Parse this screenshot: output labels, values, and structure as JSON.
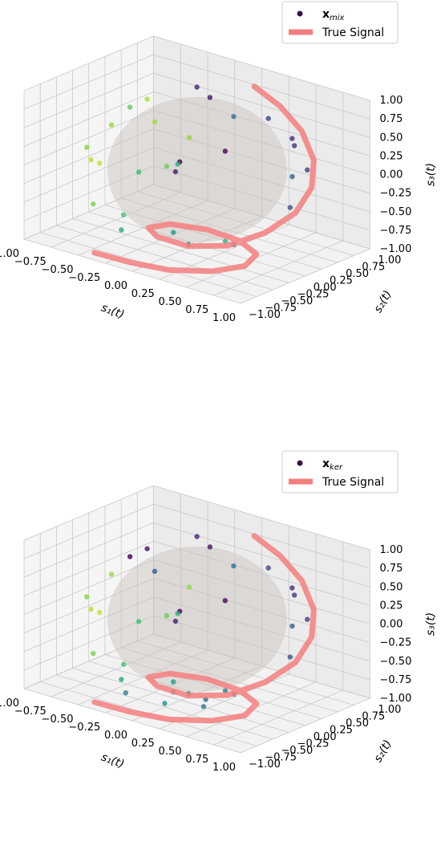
{
  "chart_data": [
    {
      "type": "scatter",
      "projection": "3d",
      "xlabel": "s₁(t)",
      "ylabel": "s₂(t)",
      "zlabel": "s₃(t)",
      "xlim": [
        -1,
        1
      ],
      "ylim": [
        -1,
        1
      ],
      "zlim": [
        -1,
        1
      ],
      "ticks": [
        "−1.00",
        "−0.75",
        "−0.50",
        "−0.25",
        "0.00",
        "0.25",
        "0.50",
        "0.75",
        "1.00"
      ],
      "grid": true,
      "legend_position": "top-right",
      "legend": [
        {
          "label_main": "x",
          "label_sub": "mix",
          "marker": "dot"
        },
        {
          "label": "True Signal",
          "marker": "line",
          "color": "#f47f7f"
        }
      ],
      "sphere": {
        "radius": 1,
        "color": "#c8c2bb"
      },
      "true_signal": {
        "name": "True Signal",
        "color": "#f47f7f",
        "description_param": "spiral on unit sphere from top-right down to bottom",
        "points": [
          [
            -0.35,
            -1.0,
            -0.9
          ],
          [
            -0.05,
            -0.95,
            -0.92
          ],
          [
            0.25,
            -0.85,
            -0.93
          ],
          [
            0.5,
            -0.6,
            -0.93
          ],
          [
            0.62,
            -0.3,
            -0.92
          ],
          [
            0.55,
            0.0,
            -0.9
          ],
          [
            0.3,
            0.15,
            -0.88
          ],
          [
            0.0,
            0.15,
            -0.86
          ],
          [
            -0.25,
            0.0,
            -0.84
          ],
          [
            -0.3,
            -0.25,
            -0.82
          ],
          [
            -0.1,
            -0.45,
            -0.78
          ],
          [
            0.25,
            -0.55,
            -0.72
          ],
          [
            0.55,
            -0.45,
            -0.62
          ],
          [
            0.75,
            -0.2,
            -0.45
          ],
          [
            0.85,
            0.1,
            -0.25
          ],
          [
            0.85,
            0.35,
            0.0
          ],
          [
            0.75,
            0.55,
            0.25
          ],
          [
            0.55,
            0.7,
            0.5
          ],
          [
            0.3,
            0.78,
            0.7
          ],
          [
            0.05,
            0.8,
            0.85
          ]
        ]
      },
      "scatter_points": [
        {
          "x": -0.85,
          "y": 0.1,
          "z": 0.2,
          "c": 0.85
        },
        {
          "x": -0.8,
          "y": -0.3,
          "z": -0.1,
          "c": 0.9
        },
        {
          "x": -0.7,
          "y": 0.4,
          "z": 0.5,
          "c": 0.88
        },
        {
          "x": -0.9,
          "y": 0.0,
          "z": -0.3,
          "c": 0.92
        },
        {
          "x": -0.6,
          "y": -0.6,
          "z": -0.5,
          "c": 0.8
        },
        {
          "x": -0.75,
          "y": 0.6,
          "z": 0.1,
          "c": 0.86
        },
        {
          "x": -0.5,
          "y": -0.2,
          "z": 0.7,
          "c": 0.75
        },
        {
          "x": -0.3,
          "y": 0.5,
          "z": 0.8,
          "c": 0.1
        },
        {
          "x": 0.0,
          "y": 0.2,
          "z": 0.9,
          "c": 0.05
        },
        {
          "x": 0.3,
          "y": 0.6,
          "z": 0.6,
          "c": 0.2
        },
        {
          "x": 0.6,
          "y": 0.5,
          "z": 0.4,
          "c": 0.15
        },
        {
          "x": 0.7,
          "y": 0.3,
          "z": 0.1,
          "c": 0.3
        },
        {
          "x": 0.8,
          "y": 0.1,
          "z": -0.2,
          "c": 0.25
        },
        {
          "x": 0.5,
          "y": -0.4,
          "z": -0.6,
          "c": 0.65
        },
        {
          "x": 0.2,
          "y": -0.7,
          "z": -0.5,
          "c": 0.55
        },
        {
          "x": -0.2,
          "y": -0.8,
          "z": -0.4,
          "c": 0.7
        },
        {
          "x": -0.4,
          "y": -0.5,
          "z": -0.8,
          "c": 0.6
        },
        {
          "x": 0.1,
          "y": -0.3,
          "z": -0.85,
          "c": 0.5
        },
        {
          "x": 0.4,
          "y": -0.1,
          "z": -0.8,
          "c": 0.45
        },
        {
          "x": 0.2,
          "y": 0.1,
          "z": 0.3,
          "c": 0.02
        },
        {
          "x": -0.1,
          "y": -0.1,
          "z": 0.1,
          "c": 0.0
        },
        {
          "x": 0.1,
          "y": -0.5,
          "z": 0.2,
          "c": 0.08
        },
        {
          "x": -0.4,
          "y": 0.2,
          "z": -0.2,
          "c": 0.78
        },
        {
          "x": 0.6,
          "y": 0.7,
          "z": 0.0,
          "c": 0.18
        },
        {
          "x": 0.4,
          "y": 0.8,
          "z": 0.3,
          "c": 0.12
        },
        {
          "x": -0.55,
          "y": 0.8,
          "z": -0.1,
          "c": 0.84
        },
        {
          "x": -0.2,
          "y": 0.9,
          "z": 0.3,
          "c": 0.4
        },
        {
          "x": 0.0,
          "y": -0.9,
          "z": 0.3,
          "c": 0.68
        },
        {
          "x": 0.3,
          "y": -0.8,
          "z": 0.5,
          "c": 0.62
        },
        {
          "x": -0.6,
          "y": -0.7,
          "z": 0.3,
          "c": 0.82
        }
      ]
    },
    {
      "type": "scatter",
      "projection": "3d",
      "xlabel": "s₁(t)",
      "ylabel": "s₂(t)",
      "zlabel": "s₃(t)",
      "xlim": [
        -1,
        1
      ],
      "ylim": [
        -1,
        1
      ],
      "zlim": [
        -1,
        1
      ],
      "ticks": [
        "−1.00",
        "−0.75",
        "−0.50",
        "−0.25",
        "0.00",
        "0.25",
        "0.50",
        "0.75",
        "1.00"
      ],
      "grid": true,
      "legend_position": "top-right",
      "legend": [
        {
          "label_main": "x",
          "label_sub": "ker",
          "marker": "dot"
        },
        {
          "label": "True Signal",
          "marker": "line",
          "color": "#f47f7f"
        }
      ],
      "sphere": {
        "radius": 1,
        "color": "#c8c2bb"
      },
      "true_signal": {
        "name": "True Signal",
        "color": "#f47f7f",
        "points": [
          [
            -0.35,
            -1.0,
            -0.9
          ],
          [
            -0.05,
            -0.95,
            -0.92
          ],
          [
            0.25,
            -0.85,
            -0.93
          ],
          [
            0.5,
            -0.6,
            -0.93
          ],
          [
            0.62,
            -0.3,
            -0.92
          ],
          [
            0.55,
            0.0,
            -0.9
          ],
          [
            0.3,
            0.15,
            -0.88
          ],
          [
            0.0,
            0.15,
            -0.86
          ],
          [
            -0.25,
            0.0,
            -0.84
          ],
          [
            -0.3,
            -0.25,
            -0.82
          ],
          [
            -0.1,
            -0.45,
            -0.78
          ],
          [
            0.25,
            -0.55,
            -0.72
          ],
          [
            0.55,
            -0.45,
            -0.62
          ],
          [
            0.75,
            -0.2,
            -0.45
          ],
          [
            0.85,
            0.1,
            -0.25
          ],
          [
            0.85,
            0.35,
            0.0
          ],
          [
            0.75,
            0.55,
            0.25
          ],
          [
            0.55,
            0.7,
            0.5
          ],
          [
            0.3,
            0.78,
            0.7
          ],
          [
            0.05,
            0.8,
            0.85
          ]
        ]
      },
      "scatter_points": [
        {
          "x": -0.85,
          "y": 0.1,
          "z": 0.2,
          "c": 0.85
        },
        {
          "x": -0.8,
          "y": -0.3,
          "z": -0.1,
          "c": 0.9
        },
        {
          "x": -0.7,
          "y": 0.4,
          "z": 0.5,
          "c": 0.05
        },
        {
          "x": -0.9,
          "y": 0.0,
          "z": -0.3,
          "c": 0.92
        },
        {
          "x": -0.6,
          "y": -0.6,
          "z": -0.5,
          "c": 0.8
        },
        {
          "x": -0.75,
          "y": 0.6,
          "z": 0.1,
          "c": 0.3
        },
        {
          "x": -0.5,
          "y": -0.2,
          "z": 0.7,
          "c": 0.0
        },
        {
          "x": -0.3,
          "y": 0.5,
          "z": 0.8,
          "c": 0.1
        },
        {
          "x": 0.0,
          "y": 0.2,
          "z": 0.9,
          "c": 0.05
        },
        {
          "x": 0.3,
          "y": 0.6,
          "z": 0.6,
          "c": 0.2
        },
        {
          "x": 0.6,
          "y": 0.5,
          "z": 0.4,
          "c": 0.15
        },
        {
          "x": 0.7,
          "y": 0.3,
          "z": 0.1,
          "c": 0.3
        },
        {
          "x": 0.8,
          "y": 0.1,
          "z": -0.2,
          "c": 0.25
        },
        {
          "x": 0.5,
          "y": -0.4,
          "z": -0.6,
          "c": 0.45
        },
        {
          "x": 0.2,
          "y": -0.7,
          "z": -0.5,
          "c": 0.55
        },
        {
          "x": -0.2,
          "y": -0.8,
          "z": -0.4,
          "c": 0.7
        },
        {
          "x": -0.4,
          "y": -0.5,
          "z": -0.8,
          "c": 0.6
        },
        {
          "x": 0.1,
          "y": -0.3,
          "z": -0.85,
          "c": 0.5
        },
        {
          "x": 0.4,
          "y": -0.1,
          "z": -0.8,
          "c": 0.45
        },
        {
          "x": 0.2,
          "y": 0.1,
          "z": 0.3,
          "c": 0.02
        },
        {
          "x": -0.1,
          "y": -0.1,
          "z": 0.1,
          "c": 0.0
        },
        {
          "x": 0.1,
          "y": -0.5,
          "z": 0.2,
          "c": 0.08
        },
        {
          "x": -0.4,
          "y": 0.2,
          "z": -0.2,
          "c": 0.78
        },
        {
          "x": 0.6,
          "y": 0.7,
          "z": 0.0,
          "c": 0.18
        },
        {
          "x": 0.4,
          "y": 0.8,
          "z": 0.3,
          "c": 0.12
        },
        {
          "x": -0.55,
          "y": 0.8,
          "z": -0.1,
          "c": 0.84
        },
        {
          "x": -0.2,
          "y": 0.9,
          "z": 0.3,
          "c": 0.4
        },
        {
          "x": 0.0,
          "y": -0.9,
          "z": 0.3,
          "c": 0.68
        },
        {
          "x": 0.3,
          "y": -0.8,
          "z": 0.5,
          "c": 0.62
        },
        {
          "x": -0.6,
          "y": -0.7,
          "z": 0.3,
          "c": 0.82
        },
        {
          "x": -0.3,
          "y": -0.6,
          "z": -0.9,
          "c": 0.45
        },
        {
          "x": 0.0,
          "y": -0.5,
          "z": -0.95,
          "c": 0.5
        },
        {
          "x": 0.3,
          "y": -0.4,
          "z": -0.9,
          "c": 0.4
        },
        {
          "x": -0.1,
          "y": -0.2,
          "z": -0.95,
          "c": 0.55
        },
        {
          "x": 0.2,
          "y": -0.2,
          "z": -0.92,
          "c": 0.35
        }
      ]
    }
  ]
}
